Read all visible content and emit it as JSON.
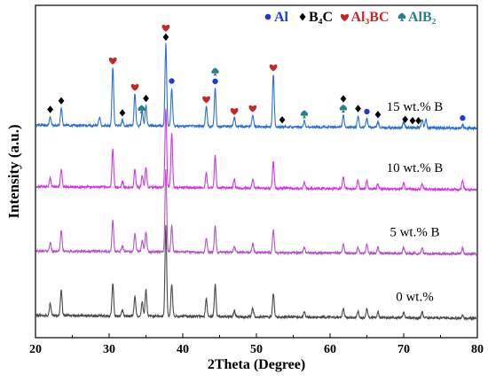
{
  "chart_data": {
    "type": "line",
    "xlabel": "2Theta (Degree)",
    "ylabel": "Intensity (a.u.)",
    "xlim": [
      20,
      80
    ],
    "x_ticks": [
      20,
      30,
      40,
      50,
      60,
      70,
      80
    ],
    "y_ticks_shown": false,
    "grid": false,
    "legend_position": "top-right",
    "legend": [
      {
        "label": "Al",
        "symbol": "circle",
        "color": "#1a3bd6"
      },
      {
        "label": "B₄C",
        "symbol": "diamond",
        "color": "#000000"
      },
      {
        "label": "Al₃BC",
        "symbol": "heart",
        "color": "#c62828"
      },
      {
        "label": "AlB₂",
        "symbol": "spade",
        "color": "#2a7f8a"
      }
    ],
    "series": [
      {
        "name": "0 wt.%",
        "color": "#4a4a4a",
        "baseline": 0.04,
        "peaks": [
          [
            22.0,
            0.04
          ],
          [
            23.5,
            0.09
          ],
          [
            30.5,
            0.11
          ],
          [
            31.8,
            0.02
          ],
          [
            33.5,
            0.07
          ],
          [
            34.5,
            0.05
          ],
          [
            35.0,
            0.09
          ],
          [
            37.7,
            0.31
          ],
          [
            38.5,
            0.11
          ],
          [
            43.2,
            0.06
          ],
          [
            44.4,
            0.11
          ],
          [
            47.0,
            0.02
          ],
          [
            49.5,
            0.03
          ],
          [
            52.3,
            0.08
          ],
          [
            56.5,
            0.02
          ],
          [
            61.8,
            0.03
          ],
          [
            63.8,
            0.02
          ],
          [
            65.0,
            0.03
          ],
          [
            66.5,
            0.02
          ],
          [
            70.0,
            0.02
          ],
          [
            72.5,
            0.02
          ],
          [
            78.0,
            0.01
          ]
        ]
      },
      {
        "name": "5 wt.% B",
        "color": "#b455c4",
        "baseline": 0.04,
        "peaks": [
          [
            22.0,
            0.03
          ],
          [
            23.5,
            0.07
          ],
          [
            30.5,
            0.11
          ],
          [
            31.8,
            0.02
          ],
          [
            33.5,
            0.06
          ],
          [
            34.5,
            0.04
          ],
          [
            35.0,
            0.07
          ],
          [
            37.7,
            0.28
          ],
          [
            38.5,
            0.09
          ],
          [
            43.2,
            0.05
          ],
          [
            44.4,
            0.09
          ],
          [
            47.0,
            0.02
          ],
          [
            49.5,
            0.03
          ],
          [
            52.3,
            0.08
          ],
          [
            56.5,
            0.02
          ],
          [
            61.8,
            0.03
          ],
          [
            63.8,
            0.02
          ],
          [
            65.0,
            0.03
          ],
          [
            66.5,
            0.02
          ],
          [
            70.0,
            0.02
          ],
          [
            72.5,
            0.02
          ],
          [
            78.0,
            0.02
          ]
        ]
      },
      {
        "name": "10 wt.% B",
        "color": "#d236e4",
        "baseline": 0.04,
        "peaks": [
          [
            22.0,
            0.03
          ],
          [
            23.5,
            0.06
          ],
          [
            30.5,
            0.13
          ],
          [
            31.8,
            0.02
          ],
          [
            33.5,
            0.06
          ],
          [
            34.5,
            0.04
          ],
          [
            35.0,
            0.07
          ],
          [
            37.7,
            0.27
          ],
          [
            38.5,
            0.19
          ],
          [
            43.2,
            0.05
          ],
          [
            44.4,
            0.11
          ],
          [
            47.0,
            0.03
          ],
          [
            49.5,
            0.03
          ],
          [
            52.3,
            0.09
          ],
          [
            56.5,
            0.02
          ],
          [
            61.8,
            0.04
          ],
          [
            63.8,
            0.03
          ],
          [
            65.0,
            0.03
          ],
          [
            66.5,
            0.02
          ],
          [
            70.0,
            0.02
          ],
          [
            72.5,
            0.02
          ],
          [
            78.0,
            0.03
          ]
        ]
      },
      {
        "name": "15 wt.% B",
        "color": "#2b6fd6",
        "baseline": 0.04,
        "peaks": [
          [
            22.0,
            0.03
          ],
          [
            23.5,
            0.06
          ],
          [
            28.7,
            0.03
          ],
          [
            30.5,
            0.2
          ],
          [
            31.8,
            0.02
          ],
          [
            33.5,
            0.11
          ],
          [
            34.5,
            0.05
          ],
          [
            35.0,
            0.07
          ],
          [
            37.7,
            0.28
          ],
          [
            38.5,
            0.13
          ],
          [
            43.2,
            0.07
          ],
          [
            44.4,
            0.13
          ],
          [
            47.0,
            0.03
          ],
          [
            49.5,
            0.04
          ],
          [
            52.3,
            0.18
          ],
          [
            56.5,
            0.02
          ],
          [
            61.8,
            0.04
          ],
          [
            63.8,
            0.04
          ],
          [
            65.0,
            0.03
          ],
          [
            66.5,
            0.02
          ],
          [
            70.0,
            0.02
          ],
          [
            72.5,
            0.03
          ],
          [
            73.0,
            0.03
          ],
          [
            78.0,
            0.01
          ]
        ]
      }
    ],
    "peak_markers": [
      {
        "x": 22.0,
        "symbol": "diamond",
        "color": "#000000"
      },
      {
        "x": 23.5,
        "symbol": "diamond",
        "color": "#000000"
      },
      {
        "x": 30.5,
        "symbol": "heart",
        "color": "#c62828"
      },
      {
        "x": 31.8,
        "symbol": "diamond",
        "color": "#000000"
      },
      {
        "x": 33.5,
        "symbol": "heart",
        "color": "#c62828"
      },
      {
        "x": 34.4,
        "symbol": "spade",
        "color": "#2a7f8a"
      },
      {
        "x": 35.0,
        "symbol": "diamond",
        "color": "#000000"
      },
      {
        "x": 37.7,
        "symbol": "diamond",
        "color": "#000000"
      },
      {
        "x": 37.7,
        "symbol": "heart",
        "color": "#c62828"
      },
      {
        "x": 38.5,
        "symbol": "circle",
        "color": "#1a3bd6"
      },
      {
        "x": 43.2,
        "symbol": "heart",
        "color": "#c62828"
      },
      {
        "x": 44.4,
        "symbol": "circle",
        "color": "#1a3bd6"
      },
      {
        "x": 44.4,
        "symbol": "spade",
        "color": "#2a7f8a"
      },
      {
        "x": 47.0,
        "symbol": "heart",
        "color": "#c62828"
      },
      {
        "x": 49.5,
        "symbol": "heart",
        "color": "#c62828"
      },
      {
        "x": 52.3,
        "symbol": "heart",
        "color": "#c62828"
      },
      {
        "x": 53.5,
        "symbol": "diamond",
        "color": "#000000"
      },
      {
        "x": 56.5,
        "symbol": "spade",
        "color": "#2a7f8a"
      },
      {
        "x": 61.8,
        "symbol": "spade",
        "color": "#2a7f8a"
      },
      {
        "x": 61.8,
        "symbol": "diamond",
        "color": "#000000"
      },
      {
        "x": 63.8,
        "symbol": "diamond",
        "color": "#000000"
      },
      {
        "x": 65.0,
        "symbol": "circle",
        "color": "#1a3bd6"
      },
      {
        "x": 66.5,
        "symbol": "diamond",
        "color": "#000000"
      },
      {
        "x": 70.2,
        "symbol": "diamond",
        "color": "#000000"
      },
      {
        "x": 71.2,
        "symbol": "diamond",
        "color": "#000000"
      },
      {
        "x": 72.0,
        "symbol": "diamond",
        "color": "#000000"
      },
      {
        "x": 78.0,
        "symbol": "circle",
        "color": "#1a3bd6"
      }
    ]
  }
}
